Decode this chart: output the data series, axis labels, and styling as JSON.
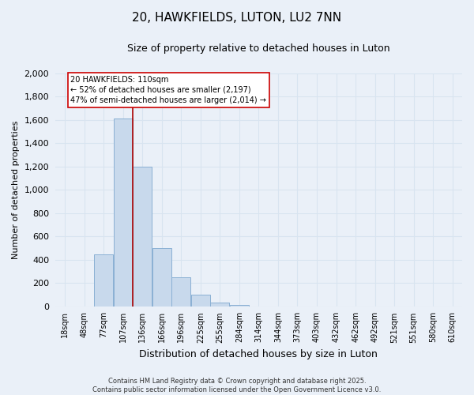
{
  "title": "20, HAWKFIELDS, LUTON, LU2 7NN",
  "subtitle": "Size of property relative to detached houses in Luton",
  "xlabel": "Distribution of detached houses by size in Luton",
  "ylabel": "Number of detached properties",
  "footer_line1": "Contains HM Land Registry data © Crown copyright and database right 2025.",
  "footer_line2": "Contains public sector information licensed under the Open Government Licence v3.0.",
  "bar_labels": [
    "18sqm",
    "48sqm",
    "77sqm",
    "107sqm",
    "136sqm",
    "166sqm",
    "196sqm",
    "225sqm",
    "255sqm",
    "284sqm",
    "314sqm",
    "344sqm",
    "373sqm",
    "403sqm",
    "432sqm",
    "462sqm",
    "492sqm",
    "521sqm",
    "551sqm",
    "580sqm",
    "610sqm"
  ],
  "bar_values": [
    0,
    2,
    450,
    1610,
    1200,
    500,
    250,
    100,
    30,
    10,
    2,
    1,
    0,
    0,
    0,
    0,
    0,
    0,
    0,
    0,
    0
  ],
  "bar_color": "#c8d9ec",
  "bar_edge_color": "#8ab0d4",
  "vline_x_index": 3.5,
  "vline_color": "#aa0000",
  "ylim_max": 2000,
  "yticks": [
    0,
    200,
    400,
    600,
    800,
    1000,
    1200,
    1400,
    1600,
    1800,
    2000
  ],
  "annotation_text_line1": "20 HAWKFIELDS: 110sqm",
  "annotation_text_line2": "← 52% of detached houses are smaller (2,197)",
  "annotation_text_line3": "47% of semi-detached houses are larger (2,014) →",
  "annotation_box_facecolor": "#ffffff",
  "annotation_box_edgecolor": "#cc0000",
  "bg_color": "#eaf0f8",
  "grid_color": "#d8e4f0",
  "title_fontsize": 11,
  "subtitle_fontsize": 9,
  "axis_label_fontsize": 8,
  "tick_fontsize": 7,
  "annotation_fontsize": 7,
  "footer_fontsize": 6
}
